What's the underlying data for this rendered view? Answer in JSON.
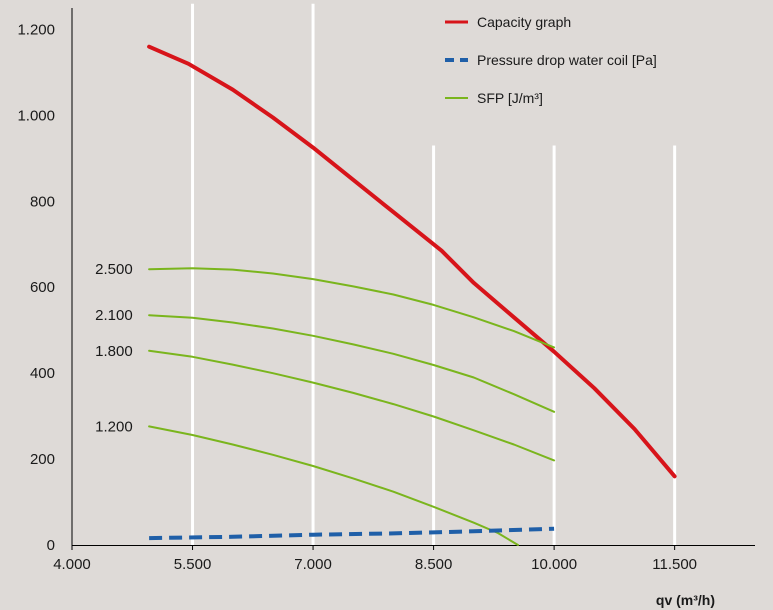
{
  "chart_data": {
    "type": "line",
    "xlabel": "qv (m³/h)",
    "ylabel": "",
    "xlim": [
      4000,
      12500
    ],
    "ylim": [
      0,
      1250
    ],
    "x_ticks": [
      {
        "value": 4000,
        "label": "4.000"
      },
      {
        "value": 5500,
        "label": "5.500"
      },
      {
        "value": 7000,
        "label": "7.000"
      },
      {
        "value": 8500,
        "label": "8.500"
      },
      {
        "value": 10000,
        "label": "10.000"
      },
      {
        "value": 11500,
        "label": "11.500"
      }
    ],
    "y_ticks": [
      {
        "value": 0,
        "label": "0"
      },
      {
        "value": 200,
        "label": "200"
      },
      {
        "value": 400,
        "label": "400"
      },
      {
        "value": 600,
        "label": "600"
      },
      {
        "value": 800,
        "label": "800"
      },
      {
        "value": 1000,
        "label": "1.000"
      },
      {
        "value": 1200,
        "label": "1.200"
      }
    ],
    "grid": {
      "orientation": "vertical",
      "color": "#ffffff",
      "lines": [
        {
          "x": 5500,
          "y_top": 1260
        },
        {
          "x": 7000,
          "y_top": 1260
        },
        {
          "x": 8500,
          "y_top": 930
        },
        {
          "x": 10000,
          "y_top": 930
        },
        {
          "x": 11500,
          "y_top": 930
        }
      ]
    },
    "legend": {
      "placement": "top-right",
      "items": [
        {
          "label": "Capacity graph",
          "color": "#d7141a",
          "style": "solid"
        },
        {
          "label": "Pressure drop water coil [Pa]",
          "color": "#1f5fa8",
          "style": "dashed"
        },
        {
          "label": "SFP [J/m³]",
          "color": "#7ab51d",
          "style": "solid"
        }
      ]
    },
    "series": [
      {
        "name": "Capacity graph",
        "color": "#d7141a",
        "style": "solid",
        "width": 4,
        "points": [
          [
            4960,
            1160
          ],
          [
            5450,
            1120
          ],
          [
            6000,
            1060
          ],
          [
            6500,
            995
          ],
          [
            7000,
            925
          ],
          [
            7500,
            850
          ],
          [
            8000,
            775
          ],
          [
            8600,
            685
          ],
          [
            9000,
            610
          ],
          [
            9500,
            530
          ],
          [
            10000,
            450
          ],
          [
            10500,
            365
          ],
          [
            11000,
            270
          ],
          [
            11500,
            160
          ]
        ]
      },
      {
        "name": "Pressure drop water coil [Pa]",
        "color": "#1f5fa8",
        "style": "dashed",
        "width": 4,
        "points": [
          [
            4960,
            16
          ],
          [
            6000,
            19
          ],
          [
            7000,
            24
          ],
          [
            8000,
            27
          ],
          [
            9000,
            32
          ],
          [
            10000,
            38
          ]
        ]
      },
      {
        "name": "SFP 2.500",
        "color": "#7ab51d",
        "style": "solid",
        "width": 2,
        "points": [
          [
            4960,
            642
          ],
          [
            5500,
            644
          ],
          [
            6000,
            641
          ],
          [
            6500,
            632
          ],
          [
            7000,
            619
          ],
          [
            7500,
            602
          ],
          [
            8000,
            583
          ],
          [
            8500,
            559
          ],
          [
            9000,
            530
          ],
          [
            9500,
            498
          ],
          [
            10000,
            460
          ]
        ]
      },
      {
        "name": "SFP 2.100",
        "color": "#7ab51d",
        "style": "solid",
        "width": 2,
        "points": [
          [
            4960,
            535
          ],
          [
            5500,
            529
          ],
          [
            6000,
            518
          ],
          [
            6500,
            504
          ],
          [
            7000,
            487
          ],
          [
            7500,
            467
          ],
          [
            8000,
            445
          ],
          [
            8500,
            419
          ],
          [
            9000,
            390
          ],
          [
            9500,
            351
          ],
          [
            10000,
            310
          ]
        ]
      },
      {
        "name": "SFP 1.800",
        "color": "#7ab51d",
        "style": "solid",
        "width": 2,
        "points": [
          [
            4960,
            452
          ],
          [
            5500,
            438
          ],
          [
            6000,
            420
          ],
          [
            6500,
            400
          ],
          [
            7000,
            378
          ],
          [
            7500,
            354
          ],
          [
            8000,
            328
          ],
          [
            8500,
            299
          ],
          [
            9000,
            267
          ],
          [
            9500,
            234
          ],
          [
            10000,
            197
          ]
        ]
      },
      {
        "name": "SFP 1.200",
        "color": "#7ab51d",
        "style": "solid",
        "width": 2,
        "points": [
          [
            4960,
            276
          ],
          [
            5500,
            256
          ],
          [
            6000,
            234
          ],
          [
            6500,
            210
          ],
          [
            7000,
            184
          ],
          [
            7500,
            155
          ],
          [
            8000,
            124
          ],
          [
            8500,
            89
          ],
          [
            9000,
            52
          ],
          [
            9300,
            28
          ],
          [
            9550,
            0
          ]
        ]
      }
    ],
    "annotations": [
      {
        "text": "2.500",
        "x": 4880,
        "y": 642
      },
      {
        "text": "2.100",
        "x": 4880,
        "y": 535
      },
      {
        "text": "1.800",
        "x": 4880,
        "y": 452
      },
      {
        "text": "1.200",
        "x": 4880,
        "y": 276
      }
    ]
  }
}
